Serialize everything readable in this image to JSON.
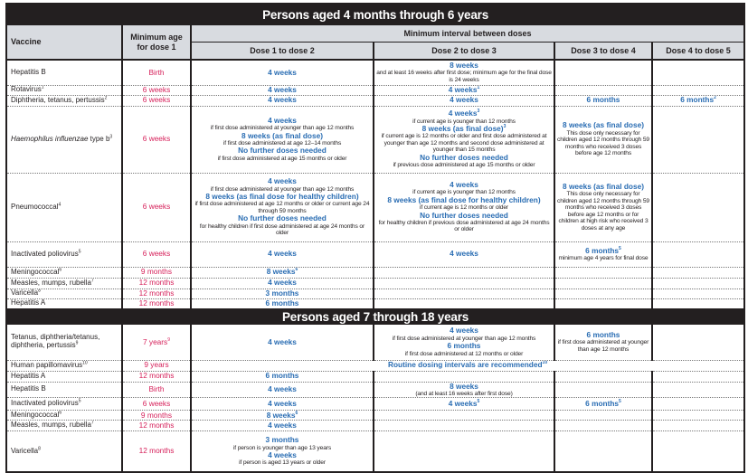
{
  "header": {
    "vaccine": "Vaccine",
    "min_age": "Minimum age for dose 1",
    "interval": "Minimum interval between doses",
    "doses": [
      "Dose 1 to dose 2",
      "Dose 2 to dose 3",
      "Dose 3 to dose 4",
      "Dose 4 to dose 5"
    ]
  },
  "colors": {
    "title_bg": "#231f20",
    "header_bg": "#d8dbe0",
    "age_red": "#d6205a",
    "interval_blue": "#2a6db3"
  },
  "sections": [
    {
      "title": "Persons aged 4 months through 6 years",
      "rows": [
        {
          "vaccine": "Hepatitis B",
          "age": "Birth",
          "cells": [
            {
              "items": [
                {
                  "k": "b",
                  "text": "4 weeks"
                }
              ]
            },
            {
              "items": [
                {
                  "k": "b",
                  "text": "8 weeks"
                },
                {
                  "k": "n",
                  "text": "and at least 16 weeks after first dose; minimum age for the final dose is 24 weeks"
                }
              ]
            },
            null,
            null
          ]
        },
        {
          "vaccine": "Rotavirus",
          "vsup": "1",
          "age": "6 weeks",
          "cells": [
            {
              "items": [
                {
                  "k": "b",
                  "text": "4 weeks"
                }
              ]
            },
            {
              "items": [
                {
                  "k": "b",
                  "text": "4 weeks",
                  "sup": "1"
                }
              ]
            },
            null,
            null
          ]
        },
        {
          "vaccine": "Diphtheria, tetanus, pertussis",
          "vsup": "2",
          "age": "6 weeks",
          "cells": [
            {
              "items": [
                {
                  "k": "b",
                  "text": "4 weeks"
                }
              ]
            },
            {
              "items": [
                {
                  "k": "b",
                  "text": "4 weeks"
                }
              ]
            },
            {
              "items": [
                {
                  "k": "b",
                  "text": "6 months"
                }
              ]
            },
            {
              "items": [
                {
                  "k": "b",
                  "text": "6 months",
                  "sup": "2"
                }
              ]
            }
          ]
        },
        {
          "vaccine_italic": "Haemophilus influenzae",
          "vaccine": " type b",
          "vsup": "3",
          "age": "6 weeks",
          "cells": [
            {
              "items": [
                {
                  "k": "b",
                  "text": "4 weeks"
                },
                {
                  "k": "n",
                  "text": "if first dose administered at younger than age 12 months"
                },
                {
                  "k": "b",
                  "text": "8 weeks (as final dose)"
                },
                {
                  "k": "n",
                  "text": "if first dose administered at age 12–14 months"
                },
                {
                  "k": "b",
                  "text": "No further doses needed"
                },
                {
                  "k": "n",
                  "text": "if first dose administered at age 15 months or older"
                }
              ]
            },
            {
              "items": [
                {
                  "k": "b",
                  "text": "4 weeks",
                  "sup": "3"
                },
                {
                  "k": "n",
                  "text": "if current age is younger than 12 months"
                },
                {
                  "k": "b",
                  "text": "8 weeks (as final dose)",
                  "sup": "3"
                },
                {
                  "k": "n",
                  "text": "if current age is 12 months or older and first dose administered at younger than age 12 months and second dose administered at younger than 15 months"
                },
                {
                  "k": "b",
                  "text": "No further doses needed"
                },
                {
                  "k": "n",
                  "text": "if previous dose administered at age 15 months or older"
                }
              ]
            },
            {
              "items": [
                {
                  "k": "b",
                  "text": "8 weeks (as final dose)"
                },
                {
                  "k": "n",
                  "text": "This dose only necessary for children aged 12 months through 59 months who received 3 doses before age 12 months"
                }
              ]
            },
            null
          ]
        },
        {
          "vaccine": "Pneumococcal",
          "vsup": "4",
          "age": "6 weeks",
          "cells": [
            {
              "items": [
                {
                  "k": "b",
                  "text": "4 weeks"
                },
                {
                  "k": "n",
                  "text": "if first dose administered at younger than age 12 months"
                },
                {
                  "k": "b",
                  "text": "8 weeks (as final dose for healthy children)"
                },
                {
                  "k": "n",
                  "text": "if first dose administered at age 12 months or older or current age 24 through 59 months"
                },
                {
                  "k": "b",
                  "text": "No further doses needed"
                },
                {
                  "k": "n",
                  "text": "for healthy children if first dose administered at age 24 months or older"
                }
              ]
            },
            {
              "items": [
                {
                  "k": "b",
                  "text": "4 weeks"
                },
                {
                  "k": "n",
                  "text": "if current age is younger than 12 months"
                },
                {
                  "k": "b",
                  "text": "8 weeks (as final dose for healthy children)"
                },
                {
                  "k": "n",
                  "text": "if current age is 12 months or older"
                },
                {
                  "k": "b",
                  "text": "No further doses needed"
                },
                {
                  "k": "n",
                  "text": "for healthy children if previous dose administered at age 24 months or older"
                }
              ]
            },
            {
              "items": [
                {
                  "k": "b",
                  "text": "8 weeks (as final dose)"
                },
                {
                  "k": "n",
                  "text": "This dose only necessary for children aged 12 months through 59 months who received 3 doses before age 12 months or for children at high risk who received 3 doses at any age"
                }
              ]
            },
            null
          ]
        },
        {
          "vaccine": "Inactivated poliovirus",
          "vsup": "5",
          "age": "6 weeks",
          "cells": [
            {
              "items": [
                {
                  "k": "b",
                  "text": "4 weeks"
                }
              ]
            },
            {
              "items": [
                {
                  "k": "b",
                  "text": "4 weeks"
                }
              ]
            },
            {
              "items": [
                {
                  "k": "b",
                  "text": "6 months",
                  "sup": "5"
                },
                {
                  "k": "n",
                  "text": "minimum age 4 years for final dose"
                }
              ]
            },
            null
          ]
        },
        {
          "vaccine": "Meningococcal",
          "vsup": "6",
          "age": "9 months",
          "cells": [
            {
              "items": [
                {
                  "k": "b",
                  "text": "8 weeks",
                  "sup": "6"
                }
              ]
            },
            null,
            null,
            null
          ]
        },
        {
          "vaccine": "Measles, mumps, rubella",
          "vsup": "7",
          "age": "12 months",
          "cells": [
            {
              "items": [
                {
                  "k": "b",
                  "text": "4 weeks"
                }
              ]
            },
            null,
            null,
            null
          ]
        },
        {
          "vaccine": "Varicella",
          "vsup": "8",
          "age": "12 months",
          "cells": [
            {
              "items": [
                {
                  "k": "b",
                  "text": "3 months"
                }
              ]
            },
            null,
            null,
            null
          ]
        },
        {
          "vaccine": "Hepatitis A",
          "age": "12 months",
          "cells": [
            {
              "items": [
                {
                  "k": "b",
                  "text": "6 months"
                }
              ]
            },
            null,
            null,
            null
          ]
        }
      ]
    },
    {
      "title": "Persons aged 7 through 18 years",
      "rows": [
        {
          "vaccine": "Tetanus, diphtheria/tetanus, diphtheria, pertussis",
          "vsup": "9",
          "age": "7 years",
          "asup": "9",
          "cells": [
            {
              "items": [
                {
                  "k": "b",
                  "text": "4 weeks"
                }
              ]
            },
            {
              "items": [
                {
                  "k": "b",
                  "text": "4 weeks"
                },
                {
                  "k": "n",
                  "text": "if first dose administered at younger than age 12 months"
                },
                {
                  "k": "b",
                  "text": "6 months"
                },
                {
                  "k": "n",
                  "text": "if first dose administered at 12 months or older"
                }
              ]
            },
            {
              "items": [
                {
                  "k": "b",
                  "text": "6 months"
                },
                {
                  "k": "n",
                  "text": "if first dose administered at younger than age 12 months"
                }
              ]
            },
            null
          ]
        },
        {
          "vaccine": "Human papillomavirus",
          "vsup": "10",
          "age": "9 years",
          "span": true,
          "cells": [
            {
              "items": [
                {
                  "k": "b",
                  "text": "Routine dosing intervals are recommended",
                  "sup": "10"
                }
              ]
            }
          ]
        },
        {
          "vaccine": "Hepatitis A",
          "age": "12 months",
          "cells": [
            {
              "items": [
                {
                  "k": "b",
                  "text": "6 months"
                }
              ]
            },
            null,
            null,
            null
          ]
        },
        {
          "vaccine": "Hepatitis B",
          "age": "Birth",
          "cells": [
            {
              "items": [
                {
                  "k": "b",
                  "text": "4 weeks"
                }
              ]
            },
            {
              "items": [
                {
                  "k": "b",
                  "text": "8 weeks"
                },
                {
                  "k": "n",
                  "text": "(and at least 16 weeks after first dose)"
                }
              ]
            },
            null,
            null
          ]
        },
        {
          "vaccine": "Inactivated poliovirus",
          "vsup": "5",
          "age": "6 weeks",
          "cells": [
            {
              "items": [
                {
                  "k": "b",
                  "text": "4 weeks"
                }
              ]
            },
            {
              "items": [
                {
                  "k": "b",
                  "text": "4 weeks",
                  "sup": "5"
                }
              ]
            },
            {
              "items": [
                {
                  "k": "b",
                  "text": "6 months",
                  "sup": "5"
                }
              ]
            },
            null
          ]
        },
        {
          "vaccine": "Meningococcal",
          "vsup": "6",
          "age": "9 months",
          "cells": [
            {
              "items": [
                {
                  "k": "b",
                  "text": "8 weeks",
                  "sup": "6"
                }
              ]
            },
            null,
            null,
            null
          ]
        },
        {
          "vaccine": "Measles, mumps, rubella",
          "vsup": "7",
          "age": "12 months",
          "cells": [
            {
              "items": [
                {
                  "k": "b",
                  "text": "4 weeks"
                }
              ]
            },
            null,
            null,
            null
          ]
        },
        {
          "vaccine": "Varicella",
          "vsup": "8",
          "age": "12 months",
          "cells": [
            {
              "items": [
                {
                  "k": "b",
                  "text": "3 months"
                },
                {
                  "k": "n",
                  "text": "if person is younger than age 13 years"
                },
                {
                  "k": "b",
                  "text": "4 weeks"
                },
                {
                  "k": "n",
                  "text": "if person is aged 13 years or older"
                }
              ]
            },
            null,
            null,
            null
          ]
        }
      ]
    }
  ]
}
